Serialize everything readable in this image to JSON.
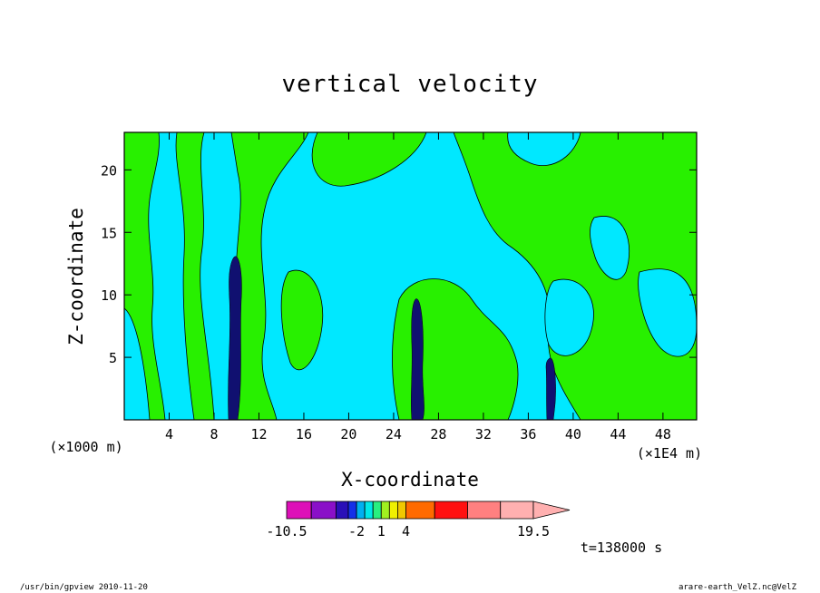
{
  "chart_data": {
    "type": "heatmap",
    "title": "vertical velocity",
    "xlabel": "X-coordinate",
    "ylabel": "Z-coordinate",
    "x_unit_left": "(×1000 m)",
    "x_unit_right": "(×1E4 m)",
    "xlim": [
      0,
      51
    ],
    "ylim": [
      0,
      23
    ],
    "x_ticks": [
      4,
      8,
      12,
      16,
      20,
      24,
      28,
      32,
      36,
      40,
      44,
      48
    ],
    "y_ticks": [
      5,
      10,
      15,
      20
    ],
    "colorbar": {
      "levels": [
        -10.5,
        -7.5,
        -4.5,
        -3,
        -2,
        -1,
        0,
        1,
        2,
        3,
        4,
        7.5,
        11.5,
        15.5,
        19.5
      ],
      "colors": [
        "#dd10b8",
        "#8a10c8",
        "#2a10b8",
        "#1430e8",
        "#00b0f0",
        "#00e8e8",
        "#28f080",
        "#a0f020",
        "#f0f000",
        "#f0c800",
        "#ff6a00",
        "#ff1010",
        "#ff8080",
        "#ffb0b0"
      ],
      "labels": [
        "-10.5",
        "-2",
        "1",
        "4",
        "19.5"
      ],
      "label_values": [
        -10.5,
        -2,
        1,
        4,
        19.5
      ]
    },
    "time_label": "t=138000 s"
  },
  "footer": {
    "left": "/usr/bin/gpview   2010-11-20",
    "right": "arare-earth_VelZ.nc@VelZ"
  }
}
